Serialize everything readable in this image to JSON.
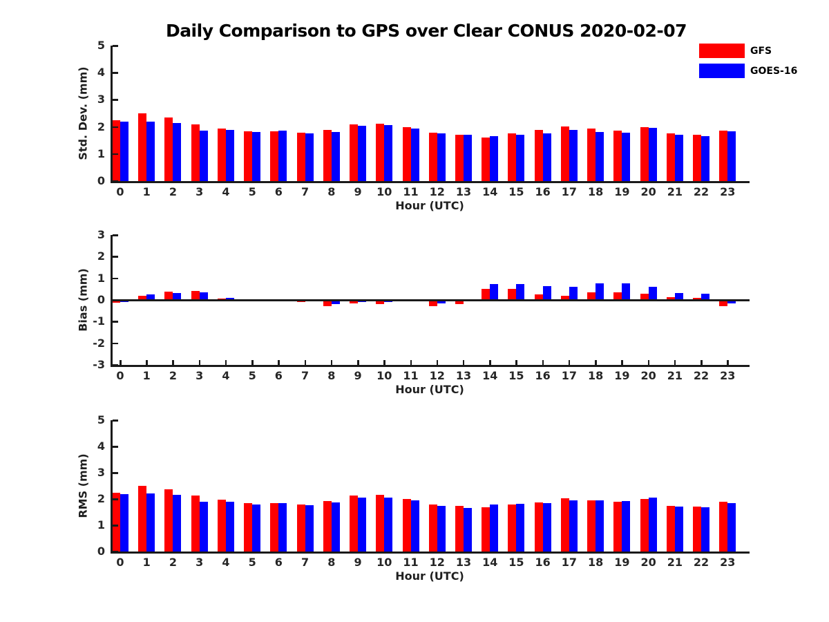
{
  "title": "Daily Comparison to GPS over Clear CONUS 2020-02-07",
  "colors": {
    "gfs": "#ff0000",
    "goes16": "#0000ff",
    "axis": "#1a1a1a"
  },
  "legend": {
    "position": "top-right",
    "entries": [
      {
        "label": "GFS",
        "color": "#ff0000"
      },
      {
        "label": "GOES-16",
        "color": "#0000ff"
      }
    ]
  },
  "xlabel": "Hour (UTC)",
  "hours": [
    0,
    1,
    2,
    3,
    4,
    5,
    6,
    7,
    8,
    9,
    10,
    11,
    12,
    13,
    14,
    15,
    16,
    17,
    18,
    19,
    20,
    21,
    22,
    23
  ],
  "chart_data": [
    {
      "type": "bar",
      "title": "",
      "ylabel": "Std. Dev. (mm)",
      "xlabel": "Hour (UTC)",
      "ylim": [
        0,
        5
      ],
      "yticks": [
        0,
        1,
        2,
        3,
        4,
        5
      ],
      "grid": false,
      "categories": [
        0,
        1,
        2,
        3,
        4,
        5,
        6,
        7,
        8,
        9,
        10,
        11,
        12,
        13,
        14,
        15,
        16,
        17,
        18,
        19,
        20,
        21,
        22,
        23
      ],
      "series": [
        {
          "name": "GFS",
          "color": "#ff0000",
          "values": [
            2.25,
            2.5,
            2.35,
            2.1,
            1.95,
            1.83,
            1.83,
            1.78,
            1.88,
            2.1,
            2.12,
            1.98,
            1.78,
            1.72,
            1.6,
            1.75,
            1.9,
            2.02,
            1.93,
            1.87,
            2.0,
            1.76,
            1.7,
            1.87
          ]
        },
        {
          "name": "GOES-16",
          "color": "#0000ff",
          "values": [
            2.2,
            2.2,
            2.15,
            1.86,
            1.88,
            1.8,
            1.85,
            1.75,
            1.82,
            2.04,
            2.06,
            1.93,
            1.76,
            1.7,
            1.65,
            1.7,
            1.76,
            1.9,
            1.8,
            1.78,
            1.97,
            1.7,
            1.67,
            1.83
          ]
        }
      ]
    },
    {
      "type": "bar",
      "title": "",
      "ylabel": "Bias (mm)",
      "xlabel": "Hour (UTC)",
      "ylim": [
        -3,
        3
      ],
      "yticks": [
        3,
        2,
        1,
        0,
        -1,
        -2,
        -3
      ],
      "grid": false,
      "categories": [
        0,
        1,
        2,
        3,
        4,
        5,
        6,
        7,
        8,
        9,
        10,
        11,
        12,
        13,
        14,
        15,
        16,
        17,
        18,
        19,
        20,
        21,
        22,
        23
      ],
      "series": [
        {
          "name": "GFS",
          "color": "#ff0000",
          "values": [
            -0.13,
            0.2,
            0.37,
            0.4,
            0.05,
            -0.02,
            -0.05,
            -0.1,
            -0.28,
            -0.16,
            -0.18,
            -0.07,
            -0.29,
            -0.18,
            0.52,
            0.51,
            0.27,
            0.2,
            0.34,
            0.34,
            0.28,
            0.13,
            0.11,
            -0.28
          ]
        },
        {
          "name": "GOES-16",
          "color": "#0000ff",
          "values": [
            -0.1,
            0.24,
            0.32,
            0.34,
            0.1,
            0.03,
            0.01,
            -0.05,
            -0.18,
            -0.11,
            -0.11,
            -0.03,
            -0.16,
            -0.03,
            0.72,
            0.73,
            0.63,
            0.61,
            0.78,
            0.78,
            0.62,
            0.31,
            0.29,
            -0.17
          ]
        }
      ]
    },
    {
      "type": "bar",
      "title": "",
      "ylabel": "RMS (mm)",
      "xlabel": "Hour (UTC)",
      "ylim": [
        0,
        5
      ],
      "yticks": [
        0,
        1,
        2,
        3,
        4,
        5
      ],
      "grid": false,
      "categories": [
        0,
        1,
        2,
        3,
        4,
        5,
        6,
        7,
        8,
        9,
        10,
        11,
        12,
        13,
        14,
        15,
        16,
        17,
        18,
        19,
        20,
        21,
        22,
        23
      ],
      "series": [
        {
          "name": "GFS",
          "color": "#ff0000",
          "values": [
            2.24,
            2.5,
            2.37,
            2.12,
            1.97,
            1.84,
            1.83,
            1.79,
            1.92,
            2.12,
            2.15,
            1.99,
            1.79,
            1.73,
            1.68,
            1.8,
            1.88,
            2.03,
            1.96,
            1.9,
            2.0,
            1.74,
            1.71,
            1.89
          ]
        },
        {
          "name": "GOES-16",
          "color": "#0000ff",
          "values": [
            2.19,
            2.2,
            2.17,
            1.9,
            1.9,
            1.78,
            1.85,
            1.76,
            1.86,
            2.04,
            2.06,
            1.94,
            1.75,
            1.67,
            1.79,
            1.82,
            1.85,
            1.96,
            1.95,
            1.93,
            2.06,
            1.71,
            1.68,
            1.85
          ]
        }
      ]
    }
  ]
}
